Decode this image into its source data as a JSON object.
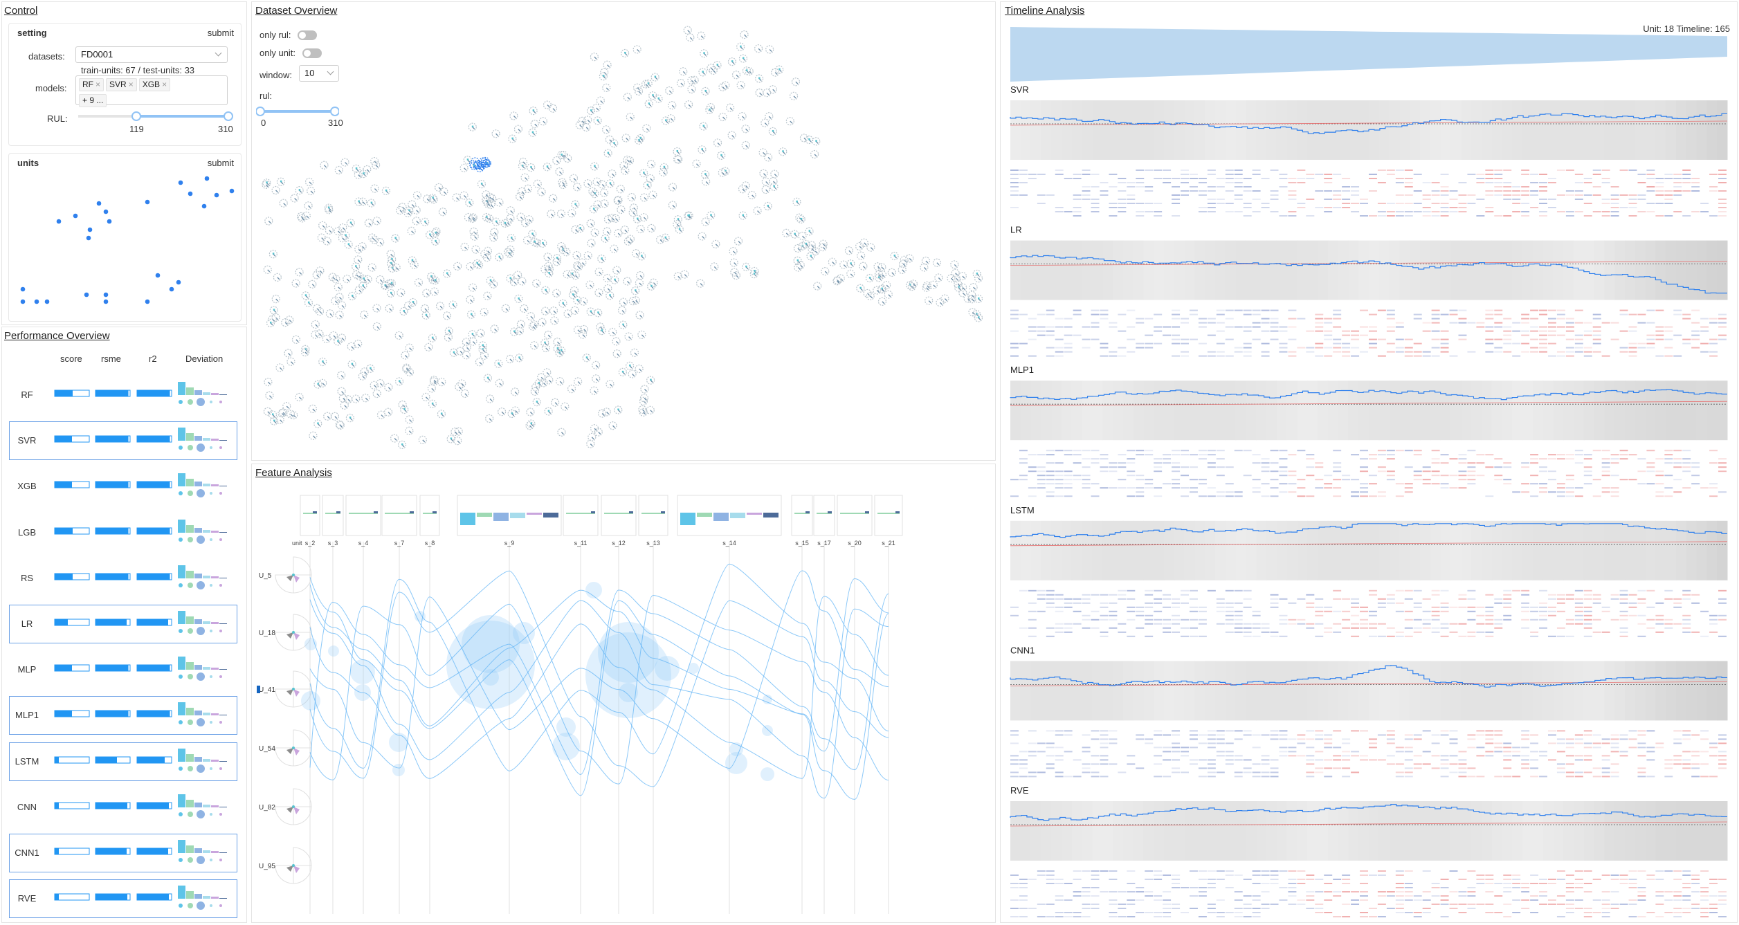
{
  "control": {
    "title": "Control",
    "setting": {
      "title": "setting",
      "submit": "submit",
      "datasets_label": "datasets:",
      "dataset_value": "FD0001",
      "dataset_info": "train-units: 67 / test-units: 33",
      "models_label": "models:",
      "model_tags": [
        "RF",
        "SVR",
        "XGB"
      ],
      "model_more": "+ 9 ...",
      "rul_label": "RUL:",
      "rul_range": [
        119,
        310
      ],
      "rul_low_text": "119",
      "rul_high_text": "310"
    },
    "units": {
      "title": "units",
      "submit": "submit"
    }
  },
  "performance": {
    "title": "Performance Overview",
    "columns": [
      "score",
      "rsme",
      "r2",
      "Deviation"
    ],
    "models": [
      {
        "name": "RF",
        "score": 0.52,
        "rsme": 0.95,
        "r2": 0.95,
        "selected": false
      },
      {
        "name": "SVR",
        "score": 0.5,
        "rsme": 0.95,
        "r2": 0.95,
        "selected": true
      },
      {
        "name": "XGB",
        "score": 0.5,
        "rsme": 0.95,
        "r2": 0.95,
        "selected": false
      },
      {
        "name": "LGB",
        "score": 0.52,
        "rsme": 0.95,
        "r2": 0.95,
        "selected": false
      },
      {
        "name": "RS",
        "score": 0.52,
        "rsme": 0.95,
        "r2": 0.95,
        "selected": false
      },
      {
        "name": "LR",
        "score": 0.38,
        "rsme": 0.9,
        "r2": 0.9,
        "selected": true
      },
      {
        "name": "MLP",
        "score": 0.5,
        "rsme": 0.95,
        "r2": 0.95,
        "selected": false
      },
      {
        "name": "MLP1",
        "score": 0.5,
        "rsme": 0.95,
        "r2": 0.95,
        "selected": true
      },
      {
        "name": "LSTM",
        "score": 0.12,
        "rsme": 0.62,
        "r2": 0.8,
        "selected": true
      },
      {
        "name": "CNN",
        "score": 0.12,
        "rsme": 0.92,
        "r2": 0.92,
        "selected": false
      },
      {
        "name": "CNN1",
        "score": 0.12,
        "rsme": 0.9,
        "r2": 0.9,
        "selected": true
      },
      {
        "name": "RVE",
        "score": 0.12,
        "rsme": 0.92,
        "r2": 0.92,
        "selected": true
      }
    ]
  },
  "dataset_overview": {
    "title": "Dataset Overview",
    "only_rul": "only rul:",
    "only_unit": "only unit:",
    "window_label": "window:",
    "window_value": "10",
    "rul_label": "rul:",
    "rul_range": [
      0,
      310
    ],
    "rul_low_text": "0",
    "rul_high_text": "310"
  },
  "feature_analysis": {
    "title": "Feature Analysis",
    "unit_axis_label": "unit",
    "features": [
      "s_2",
      "s_3",
      "s_4",
      "s_7",
      "s_8",
      "s_9",
      "s_11",
      "s_12",
      "s_13",
      "s_14",
      "s_15",
      "s_17",
      "s_20",
      "s_21"
    ],
    "units": [
      "U_5",
      "U_18",
      "U_41",
      "U_54",
      "U_82",
      "U_95"
    ]
  },
  "timeline": {
    "title": "Timeline Analysis",
    "info": "Unit: 18  Timeline: 165",
    "models": [
      "SVR",
      "LR",
      "MLP1",
      "LSTM",
      "CNN1",
      "RVE"
    ]
  },
  "colors": {
    "accent": "#2f80ed",
    "bar_fill": "#2196f3",
    "selection_border": "#6aa0e6",
    "bubble": "#90caf9",
    "error_red": "#e57373"
  }
}
